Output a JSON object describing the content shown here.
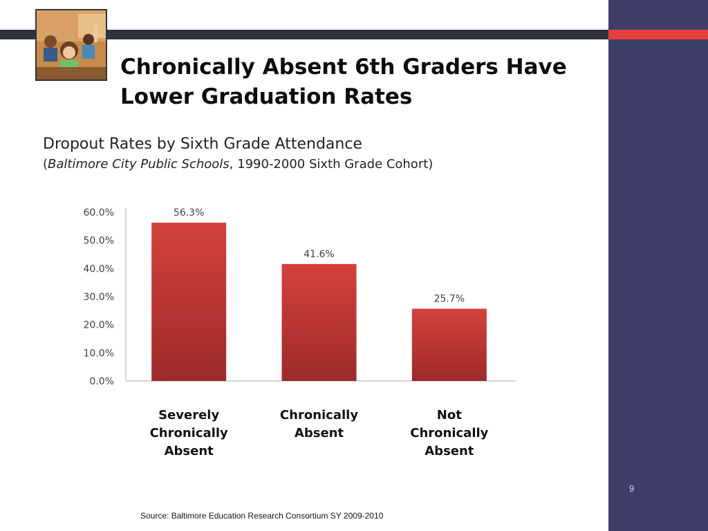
{
  "slide": {
    "title": "Chronically Absent 6th Graders Have Lower Graduation Rates",
    "page_number": "9",
    "source": "Source: Baltimore Education Research Consortium  SY 2009-2010",
    "photo_icon": "classroom-photo",
    "colors": {
      "side_panel": "#3e3e68",
      "top_bar": "#2f333e",
      "accent": "#e8403a",
      "bar": "#c53a37"
    }
  },
  "chart_heading": "Dropout Rates by Sixth Grade Attendance",
  "chart_subheading_open": "(",
  "chart_subheading_paren": "Baltimore City Public Schools",
  "chart_subheading_rest": ", 1990-2000 Sixth Grade Cohort)",
  "chart_data": {
    "type": "bar",
    "title": "Dropout Rates by Sixth Grade Attendance",
    "subtitle": "(Baltimore City Public Schools, 1990-2000 Sixth Grade Cohort)",
    "categories": [
      "Severely\nChronically\nAbsent",
      "Chronically\nAbsent",
      "Not\nChronically\nAbsent"
    ],
    "values": [
      56.3,
      41.6,
      25.7
    ],
    "data_labels": [
      "56.3%",
      "41.6%",
      "25.7%"
    ],
    "ylim": [
      0,
      60
    ],
    "yticks": [
      0,
      10,
      20,
      30,
      40,
      50,
      60
    ],
    "ytick_labels": [
      "0.0%",
      "10.0%",
      "20.0%",
      "30.0%",
      "40.0%",
      "50.0%",
      "60.0%"
    ],
    "grid": false,
    "legend": "none"
  }
}
